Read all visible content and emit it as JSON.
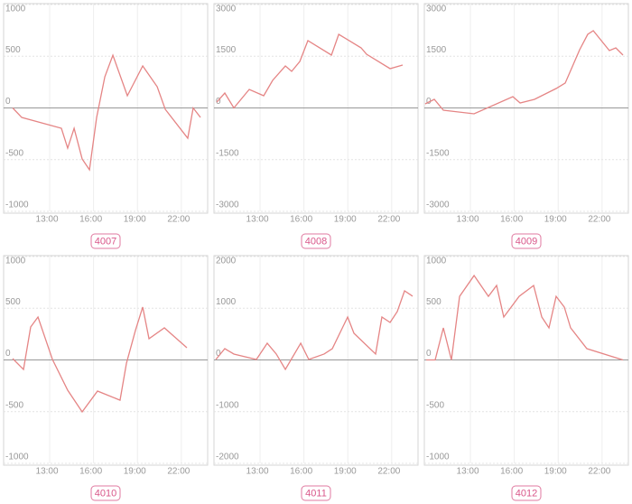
{
  "chart_data": [
    {
      "type": "line",
      "title": "4007",
      "color": "#e58585",
      "xlim": [
        9.85,
        23.8
      ],
      "ylim": [
        -1000,
        1000
      ],
      "yticks": [
        -1000,
        -500,
        0,
        500,
        1000
      ],
      "xticks": [
        {
          "value": 13,
          "label": "13:00"
        },
        {
          "value": 16,
          "label": "16:00"
        },
        {
          "value": 19,
          "label": "19:00"
        },
        {
          "value": 22,
          "label": "22:00"
        }
      ],
      "x": [
        10.47,
        11.09,
        13.8,
        14.23,
        14.67,
        15.22,
        15.72,
        16.21,
        16.77,
        17.32,
        18.31,
        19.36,
        20.35,
        20.9,
        22.44,
        22.81,
        23.31
      ],
      "values": [
        0,
        -92,
        -197,
        -389,
        -197,
        -493,
        -598,
        -92,
        301,
        510,
        118,
        406,
        205,
        -13,
        -293,
        0,
        -92
      ]
    },
    {
      "type": "line",
      "title": "4008",
      "color": "#e58585",
      "xlim": [
        9.85,
        23.8
      ],
      "ylim": [
        -3000,
        3000
      ],
      "yticks": [
        -3000,
        -1500,
        0,
        1500,
        3000
      ],
      "xticks": [
        {
          "value": 13,
          "label": "13:00"
        },
        {
          "value": 16,
          "label": "16:00"
        },
        {
          "value": 19,
          "label": "19:00"
        },
        {
          "value": 22,
          "label": "22:00"
        }
      ],
      "x": [
        10.04,
        10.59,
        11.21,
        12.26,
        13.25,
        13.86,
        14.73,
        15.16,
        15.72,
        16.27,
        17.88,
        18.38,
        19.91,
        20.28,
        21.89,
        22.75
      ],
      "values": [
        170,
        432,
        0,
        537,
        354,
        799,
        1218,
        1061,
        1349,
        1952,
        1533,
        2135,
        1742,
        1559,
        1140,
        1245
      ]
    },
    {
      "type": "line",
      "title": "4009",
      "color": "#e58585",
      "xlim": [
        9.85,
        23.8
      ],
      "ylim": [
        -3000,
        3000
      ],
      "yticks": [
        -3000,
        -1500,
        0,
        1500,
        3000
      ],
      "xticks": [
        {
          "value": 13,
          "label": "13:00"
        },
        {
          "value": 16,
          "label": "16:00"
        },
        {
          "value": 19,
          "label": "19:00"
        },
        {
          "value": 22,
          "label": "22:00"
        }
      ],
      "x": [
        9.91,
        10.53,
        11.15,
        13.25,
        15.9,
        16.4,
        17.38,
        18.86,
        19.48,
        20.47,
        21.02,
        21.4,
        22.5,
        22.94,
        23.43
      ],
      "values": [
        118,
        249,
        -66,
        -170,
        328,
        144,
        249,
        563,
        721,
        1690,
        2135,
        2240,
        1664,
        1742,
        1533
      ]
    },
    {
      "type": "line",
      "title": "4010",
      "color": "#e58585",
      "xlim": [
        9.85,
        23.8
      ],
      "ylim": [
        -1000,
        1000
      ],
      "yticks": [
        -1000,
        -500,
        0,
        500,
        1000
      ],
      "xticks": [
        {
          "value": 13,
          "label": "13:00"
        },
        {
          "value": 16,
          "label": "16:00"
        },
        {
          "value": 19,
          "label": "19:00"
        },
        {
          "value": 22,
          "label": "22:00"
        }
      ],
      "x": [
        10.47,
        11.21,
        11.7,
        12.2,
        13.19,
        14.23,
        15.22,
        16.27,
        17.81,
        18.25,
        18.86,
        19.36,
        19.79,
        20.84,
        22.38
      ],
      "values": [
        13,
        -92,
        319,
        415,
        4,
        -293,
        -502,
        -301,
        -389,
        -31,
        284,
        511,
        205,
        310,
        118
      ]
    },
    {
      "type": "line",
      "title": "4011",
      "color": "#e58585",
      "xlim": [
        9.85,
        23.8
      ],
      "ylim": [
        -2000,
        2000
      ],
      "yticks": [
        -2000,
        -1000,
        0,
        1000,
        2000
      ],
      "xticks": [
        {
          "value": 13,
          "label": "13:00"
        },
        {
          "value": 16,
          "label": "16:00"
        },
        {
          "value": 19,
          "label": "19:00"
        },
        {
          "value": 22,
          "label": "22:00"
        }
      ],
      "x": [
        9.98,
        10.59,
        11.21,
        12.75,
        13.49,
        14.11,
        14.73,
        15.78,
        16.33,
        17.38,
        17.94,
        18.99,
        19.42,
        20.9,
        21.33,
        21.89,
        22.38,
        22.88,
        23.43
      ],
      "values": [
        9,
        218,
        114,
        9,
        323,
        114,
        -183,
        323,
        9,
        114,
        218,
        830,
        515,
        114,
        830,
        725,
        935,
        1336,
        1232
      ]
    },
    {
      "type": "line",
      "title": "4012",
      "color": "#e58585",
      "xlim": [
        9.85,
        23.8
      ],
      "ylim": [
        -1000,
        1000
      ],
      "yticks": [
        -1000,
        -500,
        0,
        500,
        1000
      ],
      "xticks": [
        {
          "value": 13,
          "label": "13:00"
        },
        {
          "value": 16,
          "label": "16:00"
        },
        {
          "value": 19,
          "label": "19:00"
        },
        {
          "value": 22,
          "label": "22:00"
        }
      ],
      "x": [
        9.98,
        10.59,
        11.15,
        11.7,
        12.26,
        13.25,
        14.23,
        14.79,
        15.28,
        16.33,
        17.32,
        17.88,
        18.37,
        18.86,
        19.42,
        19.85,
        20.96,
        23.43
      ],
      "values": [
        0,
        0,
        310,
        0,
        615,
        816,
        615,
        720,
        415,
        615,
        720,
        415,
        310,
        615,
        511,
        310,
        109,
        0
      ]
    }
  ]
}
